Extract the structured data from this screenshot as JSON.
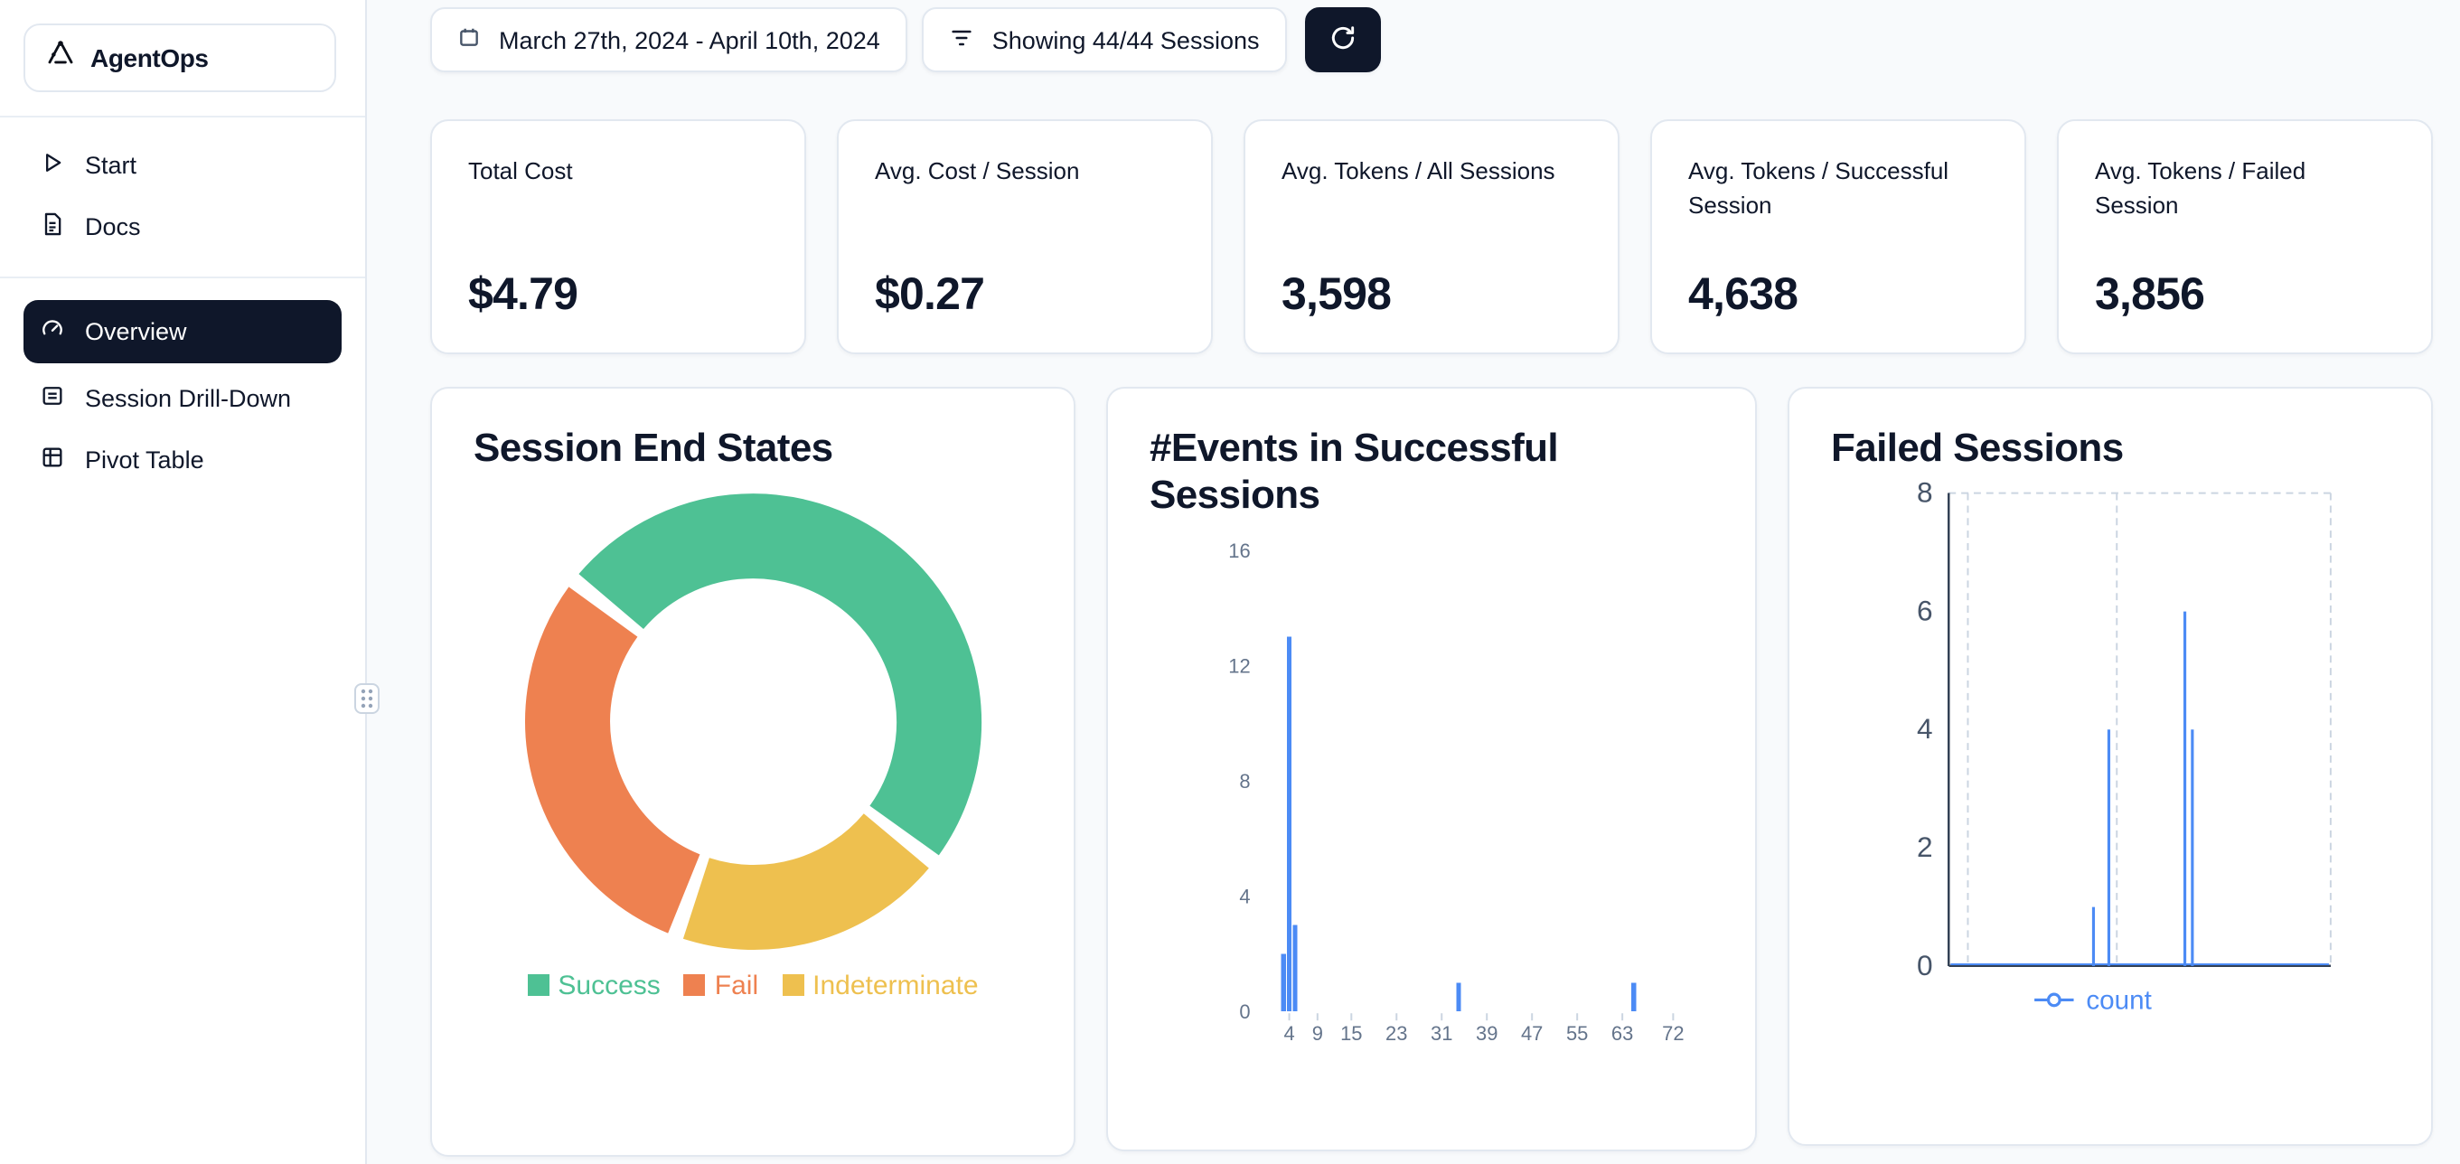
{
  "brand": {
    "name": "AgentOps"
  },
  "sidebar": {
    "items": [
      {
        "label": "Start",
        "icon": "play-icon"
      },
      {
        "label": "Docs",
        "icon": "docs-icon"
      },
      {
        "label": "Overview",
        "icon": "gauge-icon",
        "active": true
      },
      {
        "label": "Session Drill-Down",
        "icon": "sessions-icon"
      },
      {
        "label": "Pivot Table",
        "icon": "pivot-icon"
      }
    ]
  },
  "topbar": {
    "date_range_label": "March 27th, 2024 - April 10th, 2024",
    "filter_label": "Showing 44/44 Sessions"
  },
  "stats": [
    {
      "label": "Total Cost",
      "value": "$4.79"
    },
    {
      "label": "Avg. Cost / Session",
      "value": "$0.27"
    },
    {
      "label": "Avg. Tokens / All Sessions",
      "value": "3,598"
    },
    {
      "label": "Avg. Tokens / Successful Session",
      "value": "4,638"
    },
    {
      "label": "Avg. Tokens / Failed Session",
      "value": "3,856"
    }
  ],
  "cards": {
    "donut_title": "Session End States",
    "bar_title": "#Events in Successful Sessions",
    "line_title": "Failed Sessions"
  },
  "colors": {
    "accent_dark": "#0f172a",
    "chart_blue": "#4c8bf5",
    "success_green": "#4ec194",
    "fail_orange": "#ee8150",
    "indeterminate_yellow": "#eec04f",
    "axis_gray": "#64748b"
  },
  "chart_data": [
    {
      "type": "pie",
      "title": "Session End States",
      "donut": true,
      "segments": [
        {
          "label": "Success",
          "percent": 50,
          "color": "#4ec194"
        },
        {
          "label": "Fail",
          "percent": 30,
          "color": "#ee8150"
        },
        {
          "label": "Indeterminate",
          "percent": 20,
          "color": "#eec04f"
        }
      ],
      "draw_order": [
        0,
        2,
        1
      ],
      "start_angle_deg": -52,
      "gap_deg": 4,
      "legend_position": "bottom"
    },
    {
      "type": "bar",
      "title": "#Events in Successful Sessions",
      "x": [
        3,
        4,
        5,
        34,
        65
      ],
      "values": [
        2,
        13,
        3,
        1,
        1
      ],
      "xlim": [
        0,
        75
      ],
      "ylim": [
        0,
        16
      ],
      "yticks": [
        0,
        4,
        8,
        12,
        16
      ],
      "xticks": [
        4,
        9,
        15,
        23,
        31,
        39,
        47,
        55,
        63,
        72
      ],
      "color": "#4c8bf5",
      "grid": false
    },
    {
      "type": "line",
      "title": "Failed Sessions",
      "series": [
        {
          "name": "count",
          "x_frac": [
            0.379,
            0.419,
            0.618,
            0.638
          ],
          "values": [
            1,
            4,
            6,
            4
          ]
        }
      ],
      "ylim": [
        0,
        8
      ],
      "yticks": [
        0,
        2,
        4,
        6,
        8
      ],
      "color": "#4c8bf5",
      "legend": "count",
      "legend_position": "bottom",
      "grid": "dashed"
    }
  ]
}
